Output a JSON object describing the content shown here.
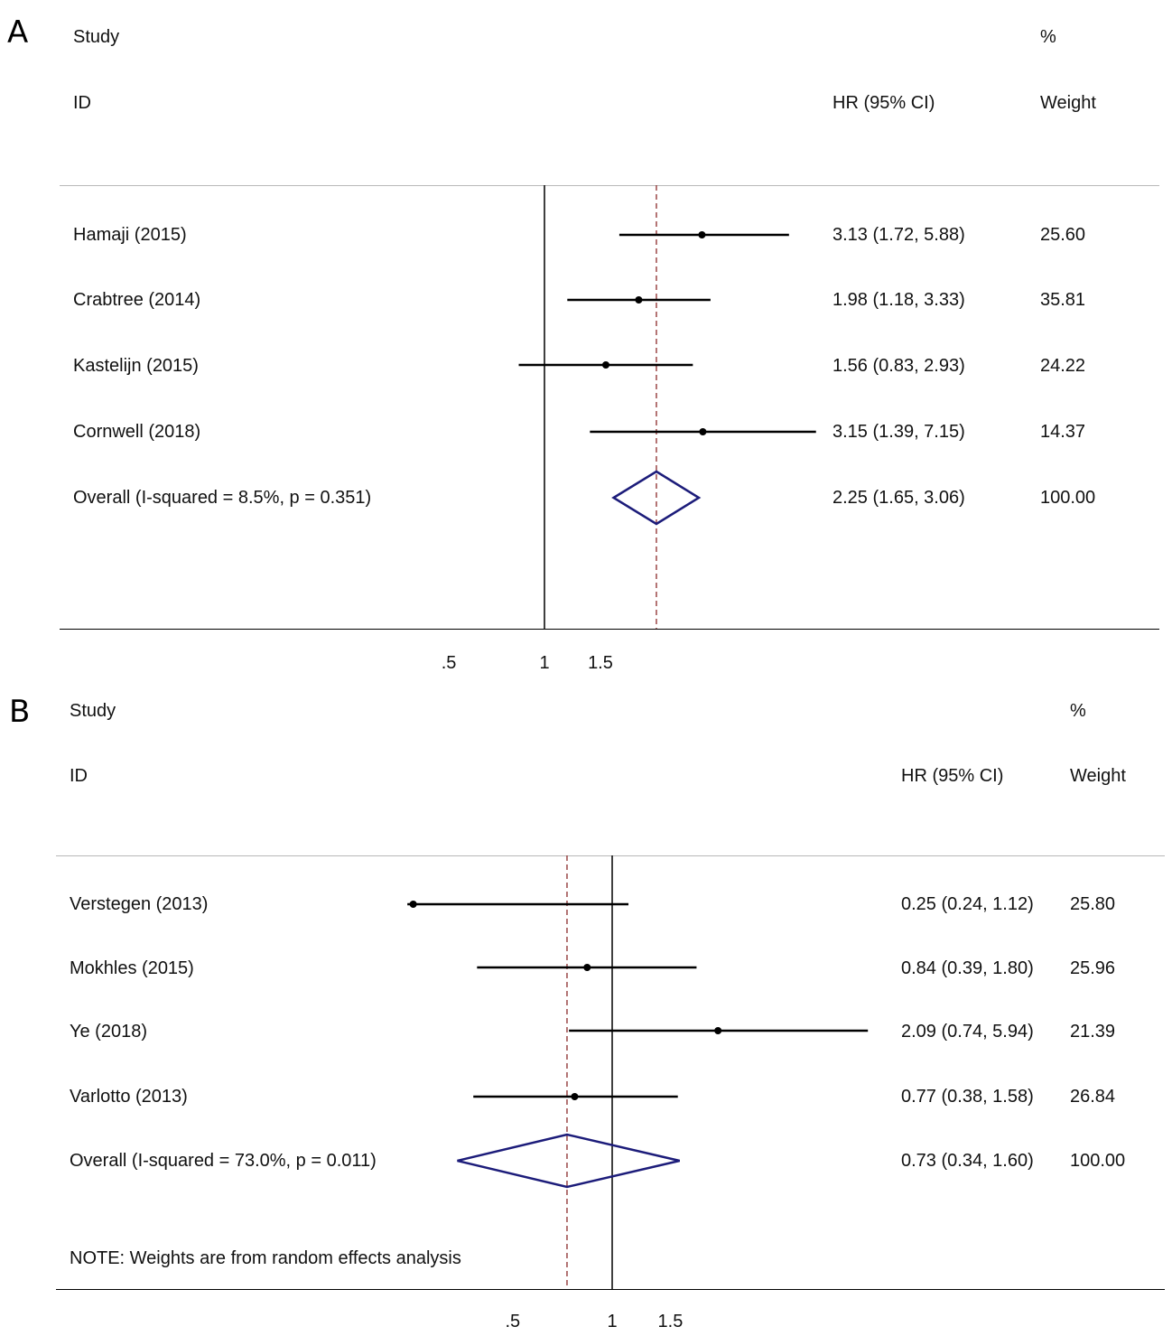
{
  "panel_a": {
    "label": "A"
  },
  "panel_b": {
    "label": "B"
  },
  "headers": {
    "study": "Study",
    "id": "ID",
    "hr": "HR (95% CI)",
    "pct": "%",
    "weight": "Weight"
  },
  "note": "NOTE: Weights are from random effects analysis",
  "colors": {
    "diamond": "#1c1c7a",
    "ref_dashed": "#8b2a2a",
    "line": "#000000"
  },
  "chart_data": [
    {
      "type": "forest",
      "panel": "A",
      "scale": "log",
      "null_line": 1,
      "pooled_line": 2.25,
      "xticks": [
        ".5",
        "1",
        "1.5"
      ],
      "xtick_values": [
        0.5,
        1,
        1.5
      ],
      "studies": [
        {
          "name": "Hamaji (2015)",
          "hr": 3.13,
          "lo": 1.72,
          "hi": 5.88,
          "ci_text": "3.13 (1.72, 5.88)",
          "weight": "25.60"
        },
        {
          "name": "Crabtree (2014)",
          "hr": 1.98,
          "lo": 1.18,
          "hi": 3.33,
          "ci_text": "1.98 (1.18, 3.33)",
          "weight": "35.81"
        },
        {
          "name": "Kastelijn (2015)",
          "hr": 1.56,
          "lo": 0.83,
          "hi": 2.93,
          "ci_text": "1.56 (0.83, 2.93)",
          "weight": "24.22"
        },
        {
          "name": "Cornwell (2018)",
          "hr": 3.15,
          "lo": 1.39,
          "hi": 7.15,
          "ci_text": "3.15 (1.39, 7.15)",
          "weight": "14.37"
        }
      ],
      "overall": {
        "name": "Overall  (I-squared = 8.5%, p = 0.351)",
        "hr": 2.25,
        "lo": 1.65,
        "hi": 3.06,
        "ci_text": "2.25 (1.65, 3.06)",
        "weight": "100.00"
      }
    },
    {
      "type": "forest",
      "panel": "B",
      "scale": "log",
      "null_line": 1,
      "pooled_line": 0.73,
      "xticks": [
        ".5",
        "1",
        "1.5"
      ],
      "xtick_values": [
        0.5,
        1,
        1.5
      ],
      "studies": [
        {
          "name": "Verstegen (2013)",
          "hr": 0.25,
          "lo": 0.24,
          "hi": 1.12,
          "ci_text": "0.25 (0.24, 1.12)",
          "weight": "25.80"
        },
        {
          "name": "Mokhles (2015)",
          "hr": 0.84,
          "lo": 0.39,
          "hi": 1.8,
          "ci_text": "0.84 (0.39, 1.80)",
          "weight": "25.96"
        },
        {
          "name": "Ye (2018)",
          "hr": 2.09,
          "lo": 0.74,
          "hi": 5.94,
          "ci_text": "2.09 (0.74, 5.94)",
          "weight": "21.39"
        },
        {
          "name": "Varlotto (2013)",
          "hr": 0.77,
          "lo": 0.38,
          "hi": 1.58,
          "ci_text": "0.77 (0.38, 1.58)",
          "weight": "26.84"
        }
      ],
      "overall": {
        "name": "Overall  (I-squared = 73.0%, p = 0.011)",
        "hr": 0.73,
        "lo": 0.34,
        "hi": 1.6,
        "ci_text": "0.73 (0.34, 1.60)",
        "weight": "100.00"
      }
    }
  ]
}
